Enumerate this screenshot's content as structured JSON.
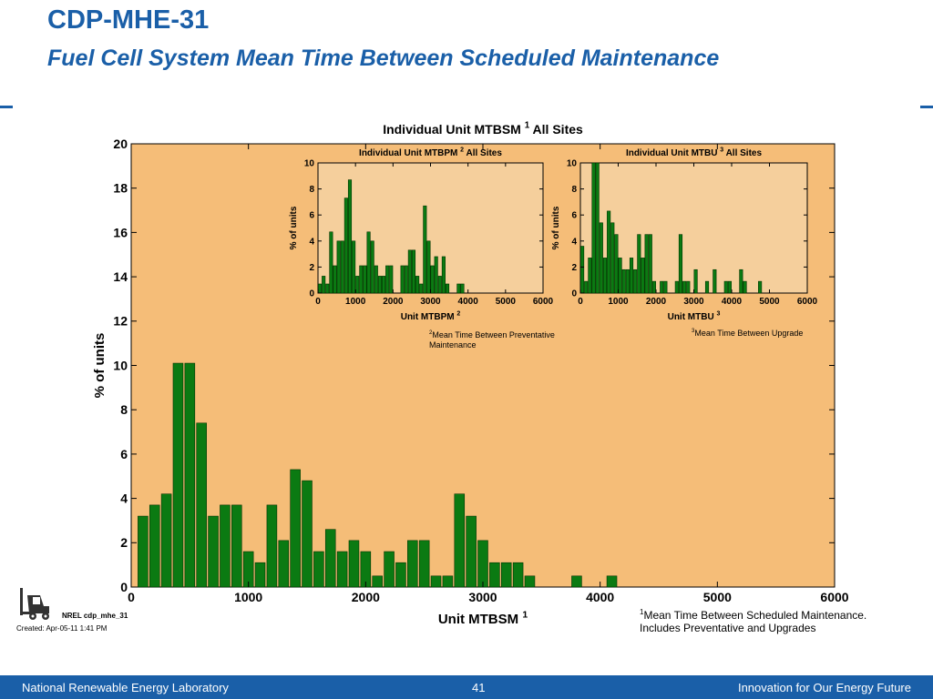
{
  "header": {
    "title": "CDP-MHE-31",
    "subtitle": "Fuel Cell System Mean Time Between Scheduled Maintenance"
  },
  "footer": {
    "org": "National Renewable Energy Laboratory",
    "page": "41",
    "tagline": "Innovation for Our Energy Future"
  },
  "meta": {
    "source_label": "NREL cdp_mhe_31",
    "created": "Created: Apr-05-11  1:41 PM"
  },
  "footnotes": {
    "f1_sup": "1",
    "f1_line1": "Mean Time Between Scheduled Maintenance.",
    "f1_line2": "Includes Preventative and Upgrades",
    "f2_sup": "2",
    "f2_line1": "Mean Time Between Preventative",
    "f2_line2": "Maintenance",
    "f3_sup": "3",
    "f3_line1": "Mean Time Between Upgrade"
  },
  "colors": {
    "bar": "#0b7a12",
    "bar_edge": "#003300",
    "main_bg": "#f5bd78",
    "inset_bg": "#f5cf9c",
    "brand": "#1a5fa8"
  },
  "chart_data": [
    {
      "type": "bar",
      "title": "Individual Unit MTBSM",
      "title_sup": "1",
      "title_suffix": "All Sites",
      "xlabel": "Unit MTBSM",
      "xlabel_sup": "1",
      "ylabel": "% of units",
      "xlim": [
        0,
        6000
      ],
      "ylim": [
        0,
        20
      ],
      "xticks": [
        0,
        1000,
        2000,
        3000,
        4000,
        5000,
        6000
      ],
      "yticks": [
        0,
        2,
        4,
        6,
        8,
        10,
        12,
        14,
        16,
        18,
        20
      ],
      "bin_width": 100,
      "x": [
        100,
        200,
        300,
        400,
        500,
        600,
        700,
        800,
        900,
        1000,
        1100,
        1200,
        1300,
        1400,
        1500,
        1600,
        1700,
        1800,
        1900,
        2000,
        2100,
        2200,
        2300,
        2400,
        2500,
        2600,
        2700,
        2800,
        2900,
        3000,
        3100,
        3200,
        3300,
        3400,
        3800,
        4100
      ],
      "values": [
        3.2,
        3.7,
        4.2,
        10.1,
        10.1,
        7.4,
        3.2,
        3.7,
        3.7,
        1.6,
        1.1,
        3.7,
        2.1,
        5.3,
        4.8,
        1.6,
        2.6,
        1.6,
        2.1,
        1.6,
        0.5,
        1.6,
        1.1,
        2.1,
        2.1,
        0.5,
        0.5,
        4.2,
        3.2,
        2.1,
        1.1,
        1.1,
        1.1,
        0.5,
        0.5,
        0.5
      ]
    },
    {
      "type": "bar",
      "title": "Individual Unit MTBPM",
      "title_sup": "2",
      "title_suffix": "All Sites",
      "xlabel": "Unit MTBPM",
      "xlabel_sup": "2",
      "ylabel": "% of units",
      "xlim": [
        0,
        6000
      ],
      "ylim": [
        0,
        10
      ],
      "xticks": [
        0,
        1000,
        2000,
        3000,
        4000,
        5000,
        6000
      ],
      "yticks": [
        0,
        2,
        4,
        6,
        8,
        10
      ],
      "bin_width": 100,
      "x": [
        50,
        150,
        250,
        350,
        450,
        550,
        650,
        750,
        850,
        950,
        1050,
        1150,
        1250,
        1350,
        1450,
        1550,
        1650,
        1750,
        1850,
        1950,
        2250,
        2350,
        2450,
        2550,
        2650,
        2750,
        2850,
        2950,
        3050,
        3150,
        3250,
        3350,
        3450,
        3750,
        3850
      ],
      "values": [
        0.7,
        1.3,
        0.7,
        4.7,
        2.1,
        4.0,
        4.0,
        7.3,
        8.7,
        4.0,
        1.3,
        2.1,
        2.1,
        4.7,
        4.0,
        2.1,
        1.3,
        1.3,
        2.1,
        2.1,
        2.1,
        2.1,
        3.3,
        3.3,
        1.3,
        0.7,
        6.7,
        4.0,
        2.1,
        2.8,
        1.3,
        2.8,
        0.7,
        0.7,
        0.7
      ]
    },
    {
      "type": "bar",
      "title": "Individual Unit MTBU",
      "title_sup": "3",
      "title_suffix": "All Sites",
      "xlabel": "Unit MTBU",
      "xlabel_sup": "3",
      "ylabel": "% of units",
      "xlim": [
        0,
        6000
      ],
      "ylim": [
        0,
        10
      ],
      "xticks": [
        0,
        1000,
        2000,
        3000,
        4000,
        5000,
        6000
      ],
      "yticks": [
        0,
        2,
        4,
        6,
        8,
        10
      ],
      "bin_width": 100,
      "x": [
        50,
        150,
        250,
        350,
        450,
        550,
        650,
        750,
        850,
        950,
        1050,
        1150,
        1250,
        1350,
        1450,
        1550,
        1650,
        1750,
        1850,
        1950,
        2150,
        2250,
        2550,
        2650,
        2750,
        2850,
        3050,
        3350,
        3550,
        3850,
        3950,
        4250,
        4350,
        4750
      ],
      "values": [
        3.6,
        0.9,
        2.7,
        10.0,
        10.0,
        5.4,
        2.7,
        6.3,
        5.4,
        4.5,
        2.7,
        1.8,
        1.8,
        2.7,
        1.8,
        4.5,
        2.7,
        4.5,
        4.5,
        0.9,
        0.9,
        0.9,
        0.9,
        4.5,
        0.9,
        0.9,
        1.8,
        0.9,
        1.8,
        0.9,
        0.9,
        1.8,
        0.9,
        0.9
      ]
    }
  ]
}
